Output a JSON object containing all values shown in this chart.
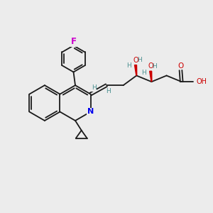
{
  "background_color": "#ececec",
  "bond_color": "#1a1a1a",
  "nitrogen_color": "#0000ee",
  "oxygen_color": "#cc0000",
  "fluorine_color": "#cc00cc",
  "hydrogen_color": "#4a9090",
  "figsize": [
    3.0,
    3.0
  ],
  "dpi": 100,
  "xlim": [
    0,
    12
  ],
  "ylim": [
    0,
    12
  ]
}
